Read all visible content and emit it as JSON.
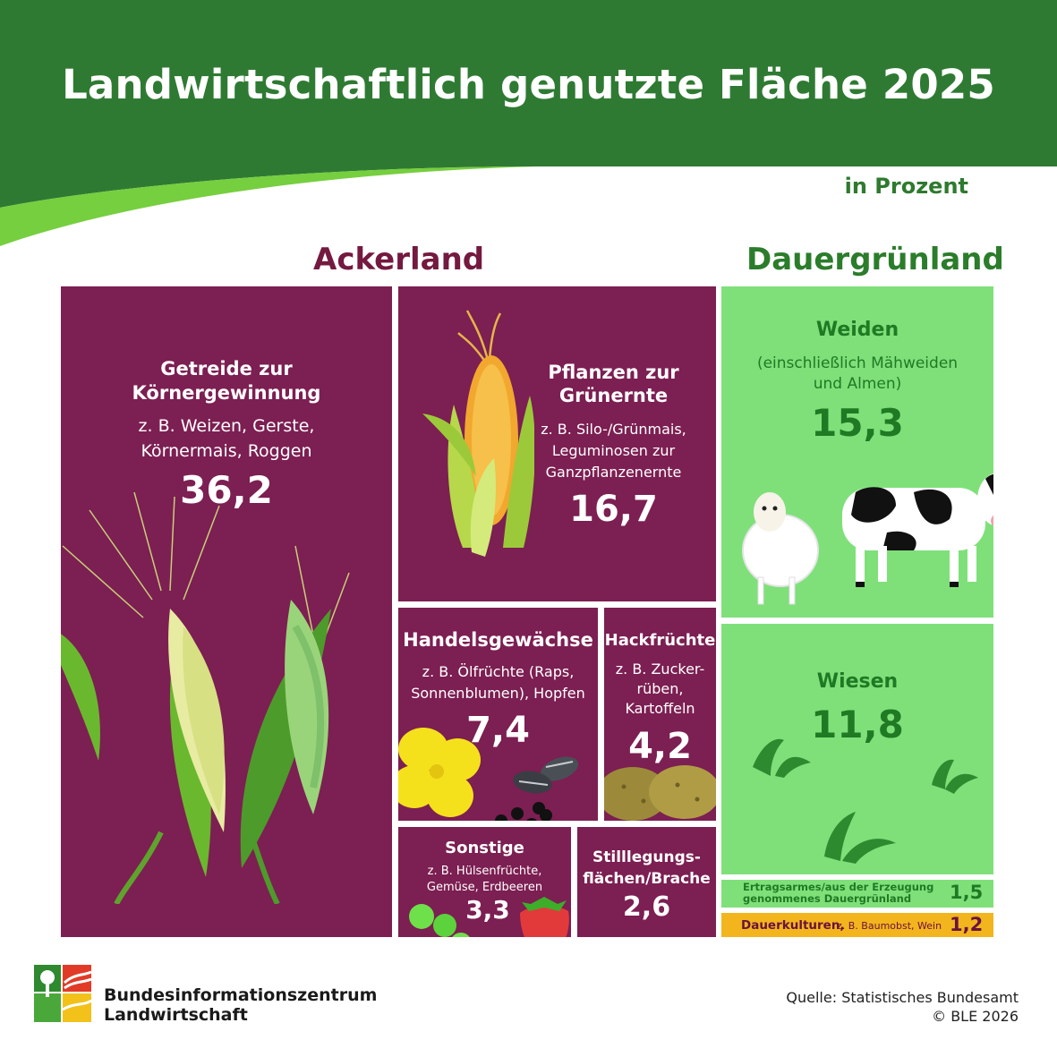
{
  "title": "Landwirtschaftlich genutzte Fläche 2025",
  "unit_label": "in Prozent",
  "colors": {
    "header_green": "#2f7a33",
    "ackerland": "#7c1f52",
    "dauergruenland": "#7fe07a",
    "dauerkulturen": "#f3b51d"
  },
  "groups": {
    "ackerland": "Ackerland",
    "dauergruenland": "Dauergrünland"
  },
  "chart_data": {
    "type": "treemap",
    "title": "Landwirtschaftlich genutzte Fläche 2025",
    "unit": "in Prozent",
    "series": [
      {
        "group": "Ackerland",
        "name": "Getreide zur Körnergewinnung",
        "example": "z. B. Weizen, Gerste, Körnermais, Roggen",
        "value": 36.2,
        "label": "36,2"
      },
      {
        "group": "Ackerland",
        "name": "Pflanzen zur Grünernte",
        "example": "z. B. Silo-/Grünmais, Leguminosen zur Ganzpflanzenernte",
        "value": 16.7,
        "label": "16,7"
      },
      {
        "group": "Ackerland",
        "name": "Handelsgewächse",
        "example": "z. B. Ölfrüchte (Raps, Sonnenblumen), Hopfen",
        "value": 7.4,
        "label": "7,4"
      },
      {
        "group": "Ackerland",
        "name": "Hackfrüchte",
        "example": "z. B. Zuckerrüben, Kartoffeln",
        "value": 4.2,
        "label": "4,2"
      },
      {
        "group": "Ackerland",
        "name": "Sonstige",
        "example": "z. B. Hülsenfrüchte, Gemüse, Erdbeeren",
        "value": 3.3,
        "label": "3,3"
      },
      {
        "group": "Ackerland",
        "name": "Stilllegungsflächen/Brache",
        "example": "",
        "value": 2.6,
        "label": "2,6"
      },
      {
        "group": "Dauergrünland",
        "name": "Weiden",
        "example": "(einschließlich Mähweiden und Almen)",
        "value": 15.3,
        "label": "15,3"
      },
      {
        "group": "Dauergrünland",
        "name": "Wiesen",
        "example": "",
        "value": 11.8,
        "label": "11,8"
      },
      {
        "group": "Dauergrünland",
        "name": "Ertragsarmes/aus der Erzeugung genommenes Dauergrünland",
        "example": "",
        "value": 1.5,
        "label": "1,5"
      },
      {
        "group": "",
        "name": "Dauerkulturen",
        "example": "z. B. Baumobst, Wein",
        "value": 1.2,
        "label": "1,2"
      }
    ]
  },
  "tiles": {
    "getreide": {
      "name_1": "Getreide zur",
      "name_2": "Körnergewinnung",
      "ex_1": "z. B. Weizen, Gerste,",
      "ex_2": "Körnermais, Roggen"
    },
    "gruenernte": {
      "name_1": "Pflanzen zur",
      "name_2": "Grünernte",
      "ex_1": "z. B. Silo-/Grünmais,",
      "ex_2": "Leguminosen zur",
      "ex_3": "Ganzpflanzenernte"
    },
    "handel": {
      "name": "Handelsgewächse",
      "ex_1": "z. B. Ölfrüchte (Raps,",
      "ex_2": "Sonnenblumen), Hopfen"
    },
    "hack": {
      "name": "Hackfrüchte",
      "ex_1": "z. B. Zucker-",
      "ex_2": "rüben,",
      "ex_3": "Kartoffeln"
    },
    "sonstige": {
      "name": "Sonstige",
      "ex_1": "z. B. Hülsenfrüchte,",
      "ex_2": "Gemüse, Erdbeeren"
    },
    "brache": {
      "name_1": "Stilllegungs-",
      "name_2": "flächen/Brache"
    },
    "weiden": {
      "name": "Weiden",
      "ex_1": "(einschließlich Mähweiden",
      "ex_2": "und Almen)"
    },
    "wiesen": {
      "name": "Wiesen"
    },
    "ertragsarm": {
      "name_1": "Ertragsarmes/aus der Erzeugung",
      "name_2": "genommenes Dauergrünland"
    },
    "dauerkulturen": {
      "name": "Dauerkulturen,",
      "ex": "z. B. Baumobst, Wein"
    }
  },
  "icons": [
    "wheat-icon",
    "corn-icon",
    "rapeseed-flower-icon",
    "sunflower-seeds-icon",
    "potato-icon",
    "peas-icon",
    "strawberry-icon",
    "sheep-icon",
    "cow-icon",
    "grass-icon",
    "ble-logo"
  ],
  "footer": {
    "org_1": "Bundesinformationszentrum",
    "org_2": "Landwirtschaft",
    "source": "Quelle: Statistisches Bundesamt",
    "copyright": "© BLE 2026"
  }
}
